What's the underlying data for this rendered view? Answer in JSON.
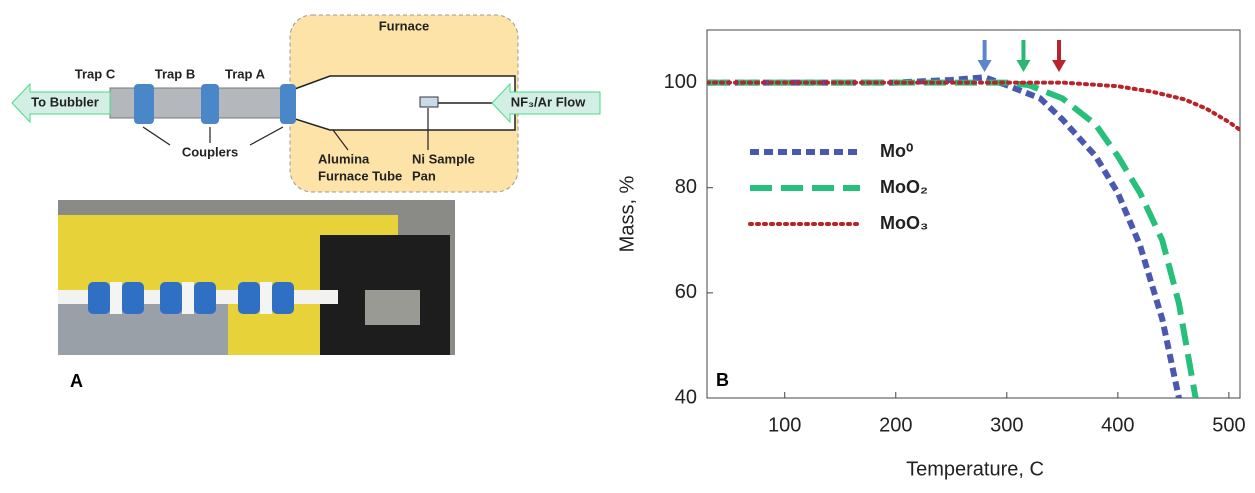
{
  "diagram": {
    "furnace": "Furnace",
    "trap_c": "Trap C",
    "trap_b": "Trap B",
    "trap_a": "Trap A",
    "outlet": "To Bubbler",
    "inlet": "NF₃/Ar Flow",
    "couplers": "Couplers",
    "tube": [
      "Alumina",
      "Furnace Tube"
    ],
    "pan": [
      "Ni Sample",
      "Pan"
    ],
    "panel": "A"
  },
  "chart_data": {
    "type": "line",
    "panel": "B",
    "xlabel": "Temperature, C",
    "ylabel": "Mass, %",
    "xlim": [
      30,
      510
    ],
    "xticks": [
      100,
      200,
      300,
      400,
      500
    ],
    "ylim": [
      40,
      110
    ],
    "yticks": [
      40,
      60,
      80,
      100
    ],
    "series": [
      {
        "name": "Mo⁰",
        "color": "#4a58b0",
        "dash": "dashed",
        "x": [
          30,
          100,
          200,
          250,
          280,
          300,
          330,
          350,
          380,
          400,
          420,
          440,
          455
        ],
        "values": [
          100,
          100,
          100,
          100.5,
          101,
          99.5,
          97,
          93,
          86,
          79,
          69,
          55,
          40
        ]
      },
      {
        "name": "MoO₂",
        "color": "#27c07a",
        "dash": "long-dashed",
        "x": [
          30,
          100,
          200,
          300,
          320,
          350,
          380,
          400,
          420,
          440,
          455,
          470
        ],
        "values": [
          100,
          100,
          100,
          100,
          99.5,
          97,
          92,
          86,
          79,
          70,
          58,
          40
        ]
      },
      {
        "name": "MoO₃",
        "color": "#b8242a",
        "dash": "dotted",
        "x": [
          30,
          100,
          200,
          300,
          350,
          400,
          430,
          460,
          480,
          500,
          510
        ],
        "values": [
          100,
          100,
          100,
          100,
          100,
          99.3,
          98.3,
          96.8,
          95,
          92.5,
          91
        ]
      }
    ],
    "markers": [
      {
        "x": 280,
        "color": "#5b86c8"
      },
      {
        "x": 315,
        "color": "#2bb673"
      },
      {
        "x": 347,
        "color": "#b8242a"
      }
    ]
  }
}
